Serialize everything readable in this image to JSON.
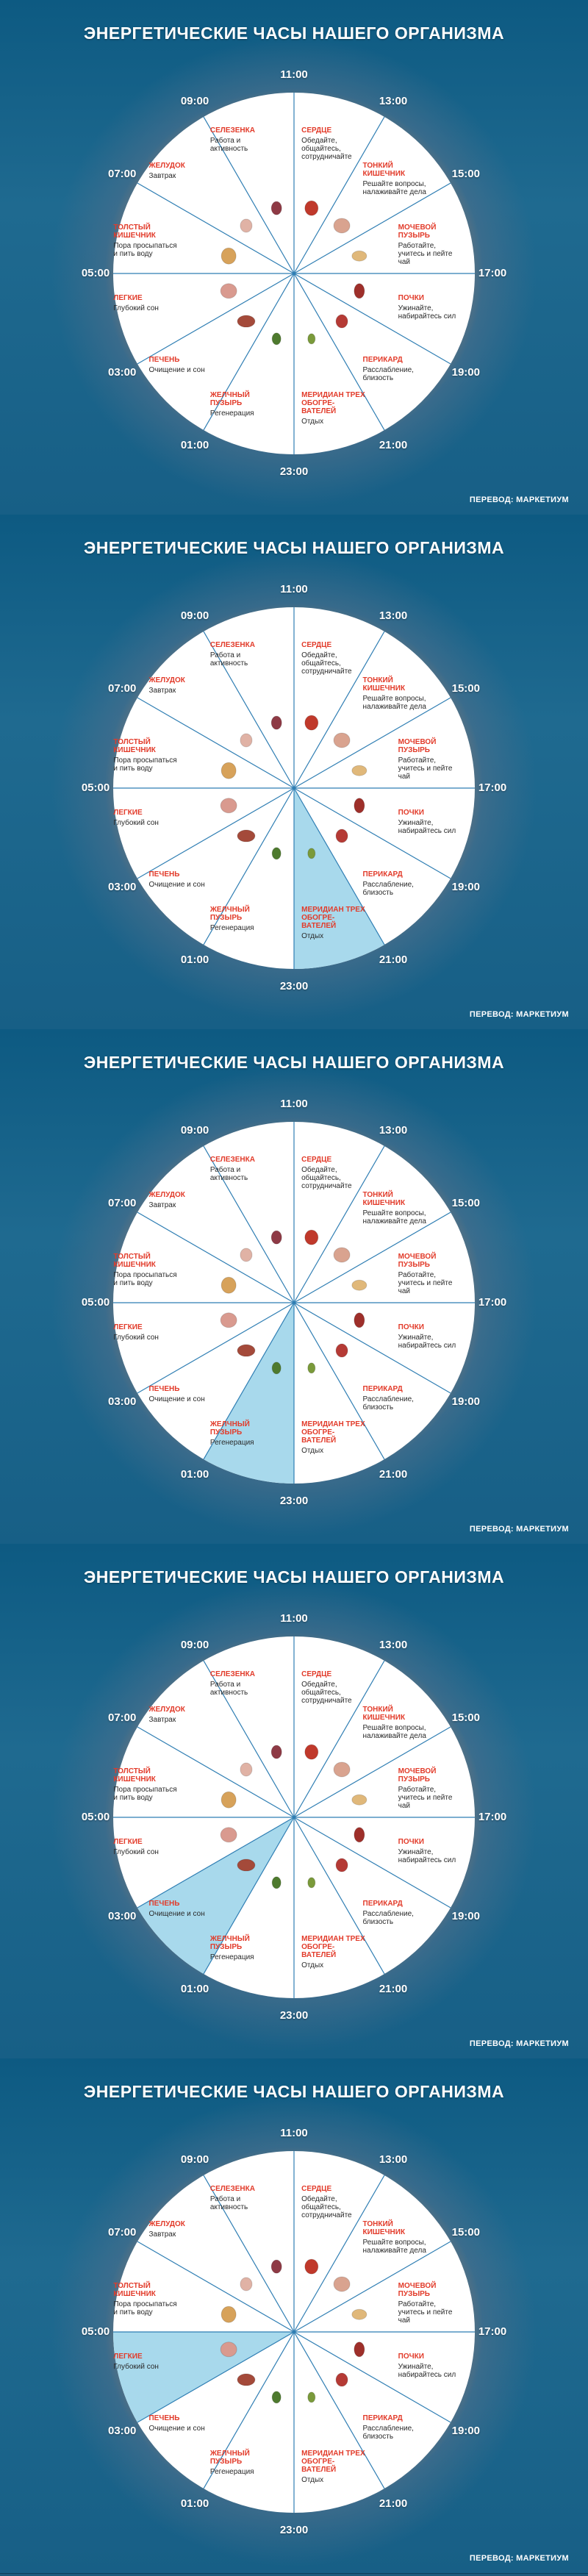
{
  "title": "ЭНЕРГЕТИЧЕСКИЕ ЧАСЫ НАШЕГО ОРГАНИЗМА",
  "credit": "ПЕРЕВОД: МАРКЕТИУМ",
  "hours": [
    "11:00",
    "13:00",
    "15:00",
    "17:00",
    "19:00",
    "21:00",
    "23:00",
    "01:00",
    "03:00",
    "05:00",
    "07:00",
    "09:00"
  ],
  "sectors": [
    {
      "organ": "Сердце",
      "desc": "Обедайте, общайтесь, сотрудничайте",
      "icon": "heart-icon"
    },
    {
      "organ": "Тонкий кишечник",
      "desc": "Решайте вопросы, налаживайте дела",
      "icon": "small-intestine-icon"
    },
    {
      "organ": "Мочевой пузырь",
      "desc": "Работайте, учитесь и пейте чай",
      "icon": "bladder-icon"
    },
    {
      "organ": "Почки",
      "desc": "Ужинайте, набирайтесь сил",
      "icon": "kidney-icon"
    },
    {
      "organ": "Перикард",
      "desc": "Расслабление, близость",
      "icon": "pericardium-icon"
    },
    {
      "organ": "Меридиан трех обогре-вателей",
      "desc": "Отдых",
      "icon": "triple-warmer-icon"
    },
    {
      "organ": "Желчный пузырь",
      "desc": "Регенерация",
      "icon": "gallbladder-icon"
    },
    {
      "organ": "Печень",
      "desc": "Очищение и сон",
      "icon": "liver-icon"
    },
    {
      "organ": "Легкие",
      "desc": "Глубокий сон",
      "icon": "lungs-icon"
    },
    {
      "organ": "Толстый кишечник",
      "desc": "Пора просыпаться и пить воду",
      "icon": "large-intestine-icon"
    },
    {
      "organ": "Желудок",
      "desc": "Завтрак",
      "icon": "stomach-icon"
    },
    {
      "organ": "Селезенка",
      "desc": "Работа и активность",
      "icon": "spleen-icon"
    }
  ],
  "panels": [
    {
      "highlight": null
    },
    {
      "highlight": 5
    },
    {
      "highlight": 6
    },
    {
      "highlight": 7
    },
    {
      "highlight": 8
    }
  ],
  "colors": {
    "highlight": "#a8d9ec",
    "organ_text": "#e23b2a",
    "divider": "#2f7eb3",
    "title": "#ffffff"
  }
}
